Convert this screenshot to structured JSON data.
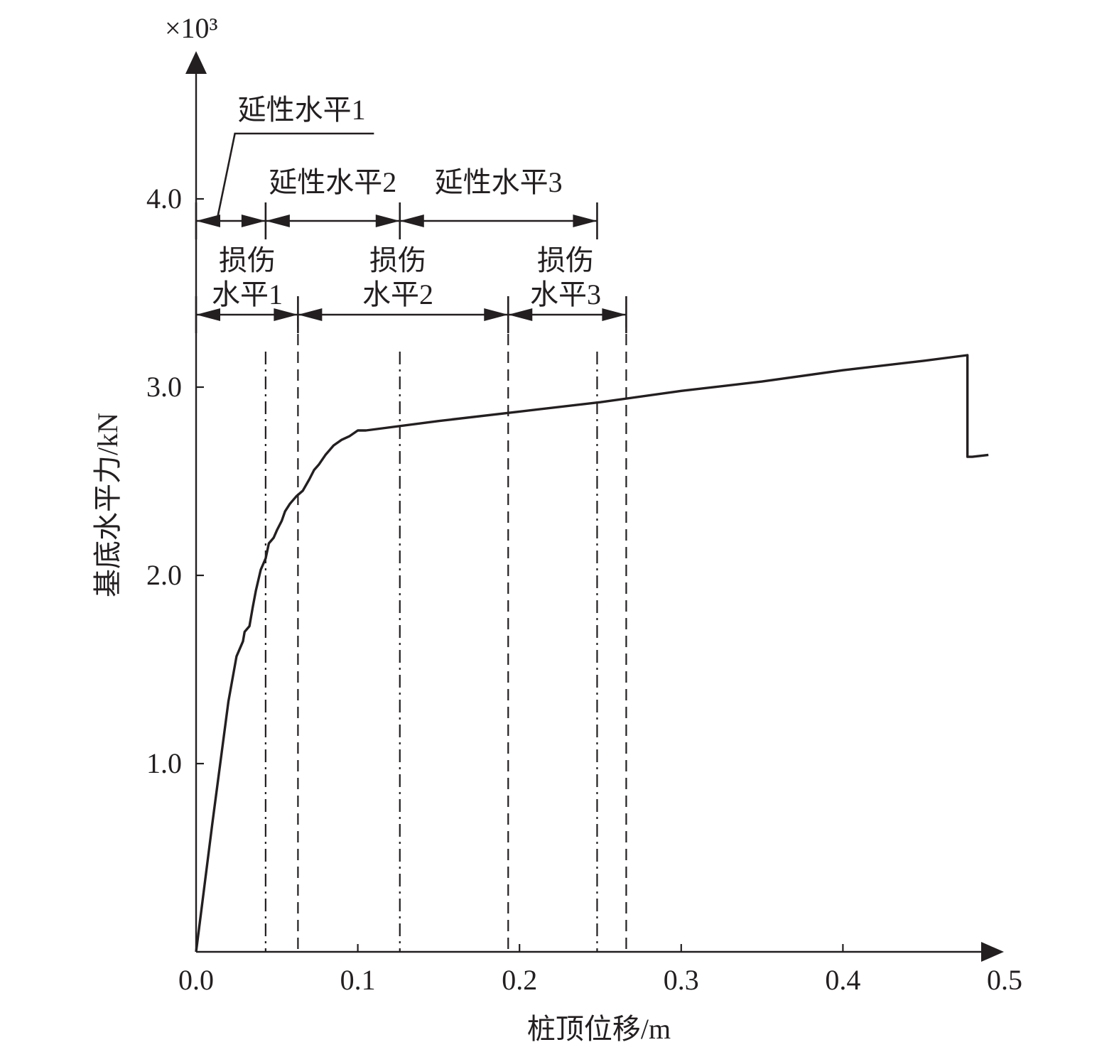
{
  "chart_data": {
    "type": "line",
    "title": "",
    "xlabel": "桩顶位移/m",
    "ylabel": "基底水平力/kN",
    "y_multiplier": "×10³",
    "xlim": [
      0,
      0.5
    ],
    "ylim": [
      0,
      4.0
    ],
    "x_ticks": [
      "0.0",
      "0.1",
      "0.2",
      "0.3",
      "0.4",
      "0.5"
    ],
    "y_ticks": [
      "1.0",
      "2.0",
      "3.0",
      "4.0"
    ],
    "grid": false,
    "series": [
      {
        "x": [
          0,
          0.01,
          0.02,
          0.025,
          0.027,
          0.029,
          0.03,
          0.033,
          0.035,
          0.037,
          0.04,
          0.043,
          0.045,
          0.048,
          0.05,
          0.053,
          0.055,
          0.058,
          0.062,
          0.066,
          0.07,
          0.073,
          0.076,
          0.08,
          0.085,
          0.09,
          0.095,
          0.1,
          0.105,
          0.15,
          0.2,
          0.25,
          0.3,
          0.35,
          0.4,
          0.45,
          0.477,
          0.477,
          0.48,
          0.49
        ],
        "y": [
          0,
          0.68,
          1.33,
          1.57,
          1.61,
          1.65,
          1.7,
          1.73,
          1.83,
          1.92,
          2.03,
          2.09,
          2.17,
          2.2,
          2.24,
          2.29,
          2.34,
          2.38,
          2.42,
          2.45,
          2.51,
          2.56,
          2.59,
          2.64,
          2.69,
          2.72,
          2.74,
          2.77,
          2.77,
          2.82,
          2.87,
          2.92,
          2.98,
          3.03,
          3.09,
          3.14,
          3.17,
          2.63,
          2.63,
          2.64
        ]
      }
    ],
    "vertical_lines": [
      {
        "x": 0.043,
        "style": "dashdot"
      },
      {
        "x": 0.063,
        "style": "dashed"
      },
      {
        "x": 0.126,
        "style": "dashdot"
      },
      {
        "x": 0.193,
        "style": "dashed"
      },
      {
        "x": 0.248,
        "style": "dashdot"
      },
      {
        "x": 0.266,
        "style": "dashed"
      }
    ],
    "ductility_levels": [
      {
        "label": "延性水平1",
        "from": 0,
        "to": 0.043
      },
      {
        "label": "延性水平2",
        "from": 0.043,
        "to": 0.126
      },
      {
        "label": "延性水平3",
        "from": 0.126,
        "to": 0.248
      }
    ],
    "damage_levels": [
      {
        "label_line1": "损伤",
        "label_line2": "水平1",
        "from": 0,
        "to": 0.063
      },
      {
        "label_line1": "损伤",
        "label_line2": "水平2",
        "from": 0.063,
        "to": 0.193
      },
      {
        "label_line1": "损伤",
        "label_line2": "水平3",
        "from": 0.193,
        "to": 0.266
      }
    ]
  }
}
